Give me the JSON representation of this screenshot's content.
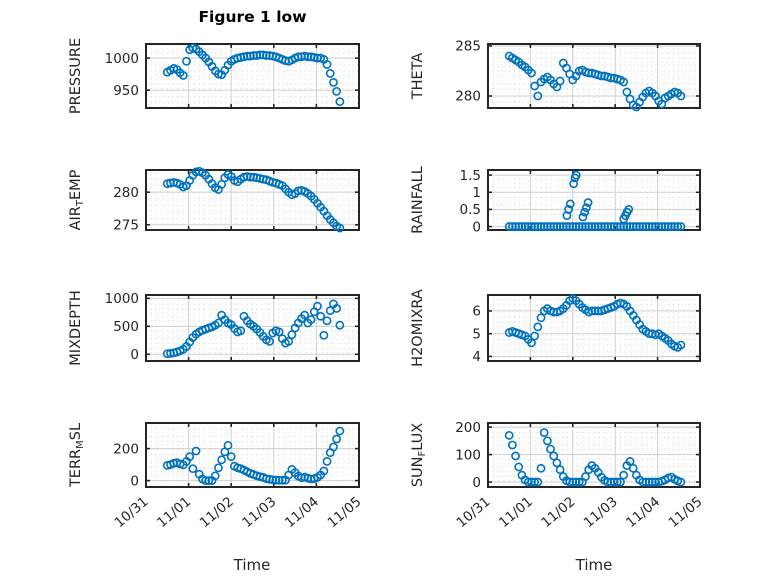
{
  "title": "Figure 1 low",
  "xlabel": "Time",
  "colors": {
    "marker": "#0072BD",
    "axis": "#262626",
    "major_grid": "#cfcfcf",
    "minor_grid": "#d9d9d9",
    "background": "#ffffff",
    "title_text": "#000000"
  },
  "x_axis": {
    "lim": [
      0,
      5
    ],
    "ticks": [
      0,
      1,
      2,
      3,
      4,
      5
    ],
    "tick_labels": [
      "10/31",
      "11/01",
      "11/02",
      "11/03",
      "11/04",
      "11/05"
    ]
  },
  "chart_data": [
    {
      "name": "pressure",
      "type": "scatter",
      "row": 0,
      "col": 0,
      "ylabel_segments": [
        {
          "text": "PRESSURE"
        }
      ],
      "ylim": [
        922,
        1022
      ],
      "yticks": [
        950,
        1000
      ],
      "ytick_labels": [
        "950",
        "1000"
      ],
      "series": {
        "t_start": 0.5,
        "t_step": 0.075,
        "values": [
          978,
          981,
          984,
          982,
          977,
          973,
          995,
          1013,
          1016,
          1014,
          1010,
          1005,
          1000,
          994,
          987,
          980,
          975,
          974,
          981,
          989,
          995,
          998,
          1000,
          1001,
          1002,
          1003,
          1003,
          1004,
          1004,
          1005,
          1005,
          1004,
          1004,
          1003,
          1002,
          1000,
          998,
          996,
          995,
          997,
          1000,
          1002,
          1002,
          1003,
          1002,
          1002,
          1001,
          1000,
          1000,
          998,
          990,
          976,
          962,
          948,
          932
        ]
      }
    },
    {
      "name": "theta",
      "type": "scatter",
      "row": 0,
      "col": 1,
      "ylabel_segments": [
        {
          "text": "THETA"
        }
      ],
      "ylim": [
        278.8,
        285.2
      ],
      "yticks": [
        280,
        285
      ],
      "ytick_labels": [
        "280",
        "285"
      ],
      "series": {
        "t_start": 0.5,
        "t_step": 0.075,
        "values": [
          284.0,
          283.8,
          283.6,
          283.4,
          283.1,
          282.9,
          282.6,
          282.3,
          281.0,
          280.0,
          281.4,
          281.7,
          281.9,
          281.6,
          281.2,
          280.9,
          281.5,
          283.3,
          282.8,
          282.2,
          281.6,
          282.0,
          282.5,
          282.6,
          282.4,
          282.3,
          282.3,
          282.2,
          282.1,
          282.0,
          282.0,
          281.9,
          281.8,
          281.8,
          281.7,
          281.6,
          281.4,
          280.4,
          279.7,
          279.1,
          278.9,
          279.4,
          279.9,
          280.3,
          280.5,
          280.3,
          280.0,
          279.5,
          279.2,
          279.8,
          280.0,
          280.2,
          280.4,
          280.3,
          280.0
        ]
      }
    },
    {
      "name": "air-temp",
      "type": "scatter",
      "row": 1,
      "col": 0,
      "ylabel_segments": [
        {
          "text": "AIR"
        },
        {
          "text": "T",
          "sub": true
        },
        {
          "text": "EMP"
        }
      ],
      "ylim": [
        274.2,
        283.4
      ],
      "yticks": [
        275,
        280
      ],
      "ytick_labels": [
        "275",
        "280"
      ],
      "series": {
        "t_start": 0.5,
        "t_step": 0.075,
        "values": [
          281.3,
          281.4,
          281.5,
          281.4,
          281.2,
          280.8,
          281.0,
          281.8,
          282.6,
          283.1,
          283.2,
          283.0,
          282.6,
          282.0,
          281.3,
          280.7,
          280.4,
          281.2,
          282.2,
          282.7,
          282.4,
          281.8,
          281.6,
          282.0,
          282.3,
          282.4,
          282.3,
          282.3,
          282.2,
          282.1,
          282.0,
          281.9,
          281.7,
          281.5,
          281.4,
          281.2,
          281.0,
          280.5,
          280.0,
          279.6,
          279.8,
          280.2,
          280.3,
          280.1,
          279.8,
          279.4,
          278.9,
          278.3,
          277.7,
          277.1,
          276.4,
          275.8,
          275.3,
          274.8,
          274.5
        ]
      }
    },
    {
      "name": "rainfall",
      "type": "scatter",
      "row": 1,
      "col": 1,
      "ylabel_segments": [
        {
          "text": "RAINFALL"
        }
      ],
      "ylim": [
        -0.1,
        1.65
      ],
      "yticks": [
        0,
        0.5,
        1,
        1.5
      ],
      "ytick_labels": [
        "0",
        "0.5",
        "1",
        "1.5"
      ],
      "series": {
        "t_start": 0.5,
        "t_step": 0.075,
        "values": [
          0,
          0,
          0,
          0,
          0,
          0,
          0,
          0,
          0,
          0,
          0,
          0,
          0,
          0,
          0,
          0,
          0,
          0,
          0,
          0,
          0,
          0,
          0,
          0,
          0,
          0,
          0,
          0,
          0,
          0,
          0,
          0,
          0,
          0,
          0,
          0,
          0,
          0,
          0,
          0,
          0,
          0,
          0,
          0,
          0,
          0,
          0,
          0,
          0,
          0,
          0,
          0,
          0,
          0,
          0
        ],
        "extra_points": [
          [
            1.86,
            0.32
          ],
          [
            1.9,
            0.5
          ],
          [
            1.94,
            0.66
          ],
          [
            2.02,
            1.25
          ],
          [
            2.05,
            1.42
          ],
          [
            2.08,
            1.5
          ],
          [
            2.24,
            0.28
          ],
          [
            2.28,
            0.42
          ],
          [
            2.32,
            0.55
          ],
          [
            2.36,
            0.7
          ],
          [
            3.2,
            0.22
          ],
          [
            3.24,
            0.32
          ],
          [
            3.28,
            0.42
          ],
          [
            3.32,
            0.5
          ]
        ]
      }
    },
    {
      "name": "mixdepth",
      "type": "scatter",
      "row": 2,
      "col": 0,
      "ylabel_segments": [
        {
          "text": "MIXDEPTH"
        }
      ],
      "ylim": [
        -120,
        1060
      ],
      "yticks": [
        0,
        500,
        1000
      ],
      "ytick_labels": [
        "0",
        "500",
        "1000"
      ],
      "series": {
        "t_start": 0.5,
        "t_step": 0.075,
        "values": [
          10,
          15,
          25,
          40,
          60,
          90,
          140,
          220,
          300,
          360,
          400,
          430,
          450,
          470,
          490,
          520,
          560,
          700,
          620,
          560,
          530,
          460,
          400,
          420,
          680,
          600,
          540,
          500,
          450,
          390,
          320,
          260,
          230,
          380,
          420,
          400,
          280,
          200,
          230,
          350,
          470,
          560,
          640,
          700,
          560,
          620,
          760,
          860,
          680,
          340,
          600,
          780,
          900,
          820,
          520
        ]
      }
    },
    {
      "name": "h2omixra",
      "type": "scatter",
      "row": 2,
      "col": 1,
      "ylabel_segments": [
        {
          "text": "H2OMIXRA"
        }
      ],
      "ylim": [
        3.8,
        6.7
      ],
      "yticks": [
        4,
        5,
        6
      ],
      "ytick_labels": [
        "4",
        "5",
        "6"
      ],
      "series": {
        "t_start": 0.5,
        "t_step": 0.075,
        "values": [
          5.05,
          5.1,
          5.05,
          5.0,
          4.95,
          4.9,
          4.75,
          4.6,
          4.9,
          5.3,
          5.7,
          6.0,
          6.1,
          6.0,
          5.95,
          5.95,
          6.0,
          6.1,
          6.25,
          6.45,
          6.55,
          6.45,
          6.3,
          6.15,
          6.05,
          5.95,
          6.0,
          6.0,
          6.0,
          6.0,
          6.05,
          6.1,
          6.15,
          6.2,
          6.3,
          6.35,
          6.3,
          6.2,
          6.0,
          5.8,
          5.6,
          5.4,
          5.2,
          5.1,
          5.0,
          5.0,
          4.95,
          5.0,
          4.9,
          4.8,
          4.7,
          4.55,
          4.45,
          4.4,
          4.5
        ]
      }
    },
    {
      "name": "terr-msl",
      "type": "scatter",
      "row": 3,
      "col": 0,
      "ylabel_segments": [
        {
          "text": "TERR"
        },
        {
          "text": "M",
          "sub": true
        },
        {
          "text": "SL"
        }
      ],
      "ylim": [
        -40,
        360
      ],
      "yticks": [
        0,
        200
      ],
      "ytick_labels": [
        "0",
        "200"
      ],
      "series": {
        "t_start": 0.5,
        "t_step": 0.075,
        "values": [
          95,
          100,
          108,
          112,
          104,
          98,
          120,
          150,
          75,
          185,
          40,
          10,
          0,
          0,
          0,
          30,
          80,
          130,
          180,
          220,
          150,
          90,
          80,
          75,
          65,
          55,
          45,
          38,
          30,
          25,
          20,
          12,
          8,
          5,
          3,
          2,
          2,
          3,
          35,
          70,
          50,
          28,
          18,
          22,
          15,
          10,
          12,
          20,
          35,
          60,
          120,
          175,
          210,
          260,
          310
        ]
      }
    },
    {
      "name": "sun-flux",
      "type": "scatter",
      "row": 3,
      "col": 1,
      "ylabel_segments": [
        {
          "text": "SUN"
        },
        {
          "text": "F",
          "sub": true
        },
        {
          "text": "LUX"
        }
      ],
      "ylim": [
        -18,
        215
      ],
      "yticks": [
        0,
        100,
        200
      ],
      "ytick_labels": [
        "0",
        "100",
        "200"
      ],
      "series": {
        "t_start": 0.5,
        "t_step": 0.075,
        "values": [
          170,
          135,
          95,
          55,
          25,
          8,
          0,
          0,
          0,
          0,
          50,
          180,
          150,
          120,
          95,
          70,
          45,
          20,
          5,
          0,
          0,
          0,
          0,
          0,
          20,
          45,
          60,
          50,
          35,
          18,
          6,
          0,
          0,
          0,
          0,
          0,
          25,
          60,
          75,
          50,
          25,
          8,
          0,
          0,
          0,
          0,
          0,
          0,
          3,
          8,
          15,
          18,
          10,
          4,
          0
        ]
      }
    }
  ]
}
